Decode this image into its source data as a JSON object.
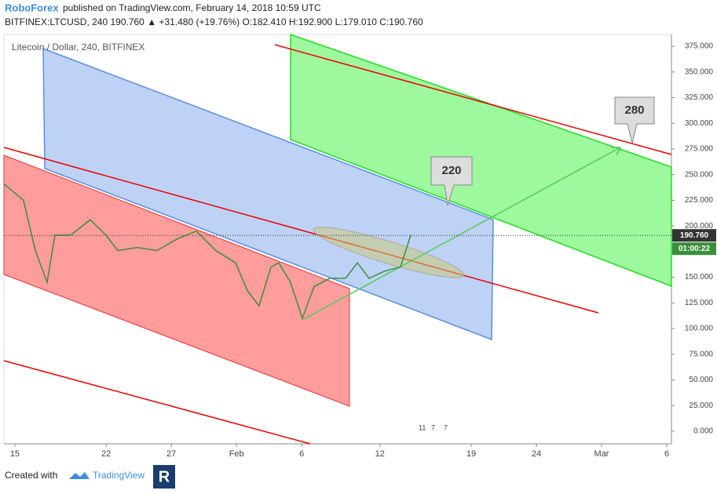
{
  "header": {
    "brand": "RoboForex",
    "published": "published on TradingView.com, February 14, 2018 10:59 UTC",
    "symbol_line": "BITFINEX:LTCUSD, 240  190.760 ▲ +31.480 (+19.76%) O:182.410 H:192.900 L:179.010 C:190.760"
  },
  "chart_data": {
    "type": "line",
    "title": "Litecoin / Dollar, 240, BITFINEX",
    "x": [
      -0.84,
      0.66,
      1.57,
      2.47,
      3.07,
      4.28,
      5.78,
      6.99,
      7.89,
      9.4,
      10.9,
      12.41,
      13.92,
      15.42,
      16.93,
      17.83,
      18.73,
      19.64,
      20.24,
      21.14,
      22.05,
      22.95,
      24.16,
      25.36,
      26.27,
      27.17,
      28.37,
      29.58,
      30.06,
      30.36
    ],
    "series": [
      {
        "name": "LTCUSD",
        "color": "#3a8f3a",
        "values": [
          241,
          225,
          176,
          145,
          191,
          191,
          206,
          191,
          176,
          179,
          176,
          187,
          195,
          176,
          164,
          137,
          122,
          160,
          164,
          145,
          110,
          141,
          149,
          149,
          164,
          149,
          156,
          160,
          179,
          191
        ]
      }
    ],
    "xlim": [
      -0.84,
      50.36
    ],
    "xticks": [
      {
        "value": 0,
        "label": "15"
      },
      {
        "value": 7,
        "label": "22"
      },
      {
        "value": 12,
        "label": "27"
      },
      {
        "value": 17,
        "label": "Feb"
      },
      {
        "value": 22,
        "label": "6"
      },
      {
        "value": 28,
        "label": "12"
      },
      {
        "value": 35,
        "label": "19"
      },
      {
        "value": 40,
        "label": "24"
      },
      {
        "value": 45,
        "label": "Mar"
      },
      {
        "value": 50,
        "label": "6"
      }
    ],
    "ylim": [
      -12.3,
      386.5
    ],
    "yticks": [
      {
        "value": 0,
        "label": "0.000"
      },
      {
        "value": 25,
        "label": "25.000"
      },
      {
        "value": 50,
        "label": "50.000"
      },
      {
        "value": 75,
        "label": "75.000"
      },
      {
        "value": 100,
        "label": "100.000"
      },
      {
        "value": 125,
        "label": "125.000"
      },
      {
        "value": 150,
        "label": "150.000"
      },
      {
        "value": 175,
        "label": "175.000"
      },
      {
        "value": 200,
        "label": "200.000"
      },
      {
        "value": 225,
        "label": "225.000"
      },
      {
        "value": 250,
        "label": "250.000"
      },
      {
        "value": 275,
        "label": "275.000"
      },
      {
        "value": 300,
        "label": "300.000"
      },
      {
        "value": 325,
        "label": "325.000"
      },
      {
        "value": 350,
        "label": "350.000"
      },
      {
        "value": 375,
        "label": "375.000"
      }
    ],
    "last_price": {
      "value": 190.76,
      "label": "190.760"
    },
    "countdown": "01:00:22",
    "annotations": [
      "220",
      "280"
    ],
    "events": [
      "11",
      "7",
      "7"
    ]
  },
  "footer": {
    "created": "Created with",
    "brand": "TradingView"
  }
}
